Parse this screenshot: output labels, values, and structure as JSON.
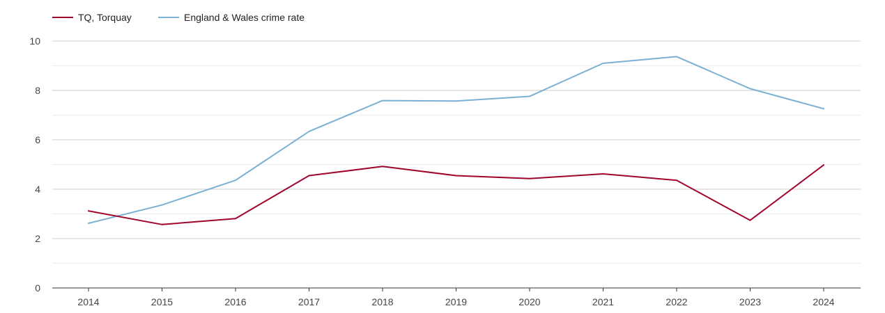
{
  "chart_data": {
    "type": "line",
    "title": "",
    "xlabel": "",
    "ylabel": "",
    "x": [
      "2014",
      "2015",
      "2016",
      "2017",
      "2018",
      "2019",
      "2020",
      "2021",
      "2022",
      "2023",
      "2024"
    ],
    "ylim": [
      0,
      10
    ],
    "yticks": [
      0,
      2,
      4,
      6,
      8,
      10
    ],
    "grid": true,
    "legend_position": "top-left",
    "series": [
      {
        "name": "TQ, Torquay",
        "color": "#a0052c",
        "values": [
          3.12,
          2.57,
          2.81,
          4.55,
          4.92,
          4.55,
          4.43,
          4.62,
          4.36,
          2.74,
          4.98
        ]
      },
      {
        "name": "England & Wales crime rate",
        "color": "#7ab0d4",
        "values": [
          2.62,
          3.36,
          4.36,
          6.34,
          7.59,
          7.57,
          7.76,
          9.1,
          9.37,
          8.07,
          7.26
        ]
      }
    ]
  }
}
